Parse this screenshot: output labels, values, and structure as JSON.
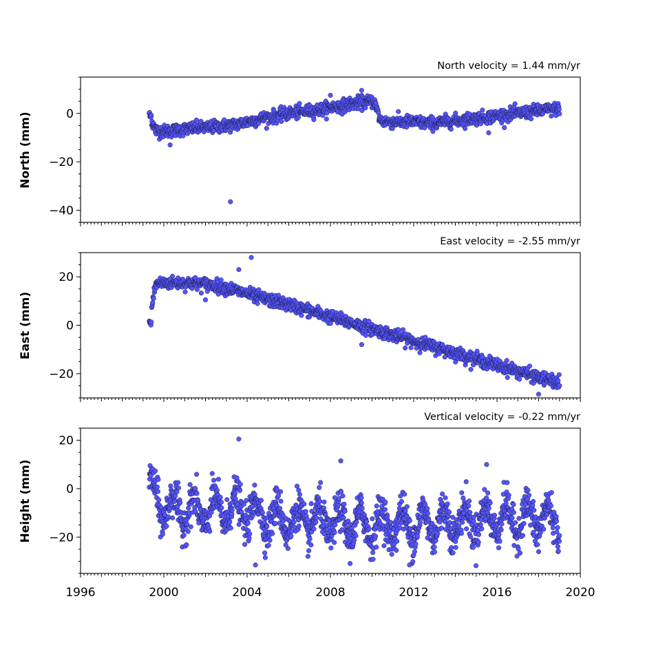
{
  "chart_data": [
    {
      "type": "scatter",
      "title": "North velocity = 1.44 mm/yr",
      "ylabel": "North (mm)",
      "xlim": [
        1996,
        2020
      ],
      "ylim": [
        -45,
        15
      ],
      "yticks": [
        0,
        -20,
        -40
      ],
      "color": "#5555ff",
      "edge_color": "#1a1a3a",
      "series": [
        {
          "segments": [
            {
              "x": [
                1999.3,
                1999.6,
                2000.0,
                2000.5,
                2001.0,
                2001.5,
                2002.0,
                2002.5,
                2003.0,
                2003.5,
                2004.0,
                2004.5,
                2005.0,
                2005.5,
                2006.0,
                2006.5,
                2007.0,
                2007.5,
                2008.0,
                2008.5,
                2009.0,
                2009.5,
                2010.1,
                2010.4,
                2010.8,
                2011.5,
                2012.0,
                2012.5,
                2013.0,
                2013.5,
                2014.0,
                2014.5,
                2015.0,
                2015.5,
                2016.0,
                2016.5,
                2017.0,
                2017.5,
                2018.0,
                2018.5,
                2019.0
              ],
              "y": [
                -1,
                -7,
                -7.5,
                -7,
                -6.5,
                -6,
                -6,
                -5.5,
                -5,
                -4.5,
                -3.5,
                -2.5,
                -1.5,
                -1,
                0,
                0.5,
                1,
                1.5,
                2.5,
                3,
                4,
                4.5,
                5,
                -3,
                -3.5,
                -3.5,
                -3.5,
                -4,
                -4,
                -3.5,
                -3,
                -2.5,
                -2,
                -1.5,
                -1,
                -0.5,
                0,
                0.5,
                1,
                1.5,
                2
              ]
            }
          ],
          "outliers": [
            [
              2003.2,
              -36.5
            ],
            [
              2000.3,
              -13
            ],
            [
              2015.6,
              -8
            ],
            [
              2009.5,
              9.5
            ],
            [
              2008.0,
              7.5
            ]
          ]
        }
      ]
    },
    {
      "type": "scatter",
      "title": "East velocity = -2.55 mm/yr",
      "ylabel": "East (mm)",
      "xlim": [
        1996,
        2020
      ],
      "ylim": [
        -30,
        30
      ],
      "yticks": [
        20,
        0,
        -20
      ],
      "color": "#5555ff",
      "edge_color": "#1a1a3a",
      "series": [
        {
          "segments": [
            {
              "x": [
                1999.3,
                1999.6,
                2000.0,
                2001.0,
                2002.0,
                2003.0,
                2004.0,
                2005.0,
                2006.0,
                2007.0,
                2008.0,
                2009.0,
                2010.0,
                2011.0,
                2012.0,
                2013.0,
                2014.0,
                2015.0,
                2016.0,
                2017.0,
                2018.0,
                2019.0
              ],
              "y": [
                1,
                17,
                17.5,
                17.5,
                17,
                15.5,
                13,
                10.5,
                8.5,
                6,
                3.5,
                1,
                -1.5,
                -4,
                -6.5,
                -9,
                -11.5,
                -14,
                -16.5,
                -19,
                -21.5,
                -24
              ]
            }
          ],
          "outliers": [
            [
              2004.2,
              28
            ],
            [
              2003.6,
              23
            ],
            [
              2018.0,
              -28.5
            ],
            [
              2002.0,
              10.5
            ],
            [
              2004.5,
              9
            ],
            [
              2009.5,
              -8
            ]
          ]
        }
      ]
    },
    {
      "type": "scatter",
      "title": "Vertical velocity = -0.22 mm/yr",
      "ylabel": "Height (mm)",
      "xlabel": "",
      "xlim": [
        1996,
        2020
      ],
      "ylim": [
        -35,
        25
      ],
      "yticks": [
        20,
        0,
        -20
      ],
      "xticks": [
        "1996",
        "2000",
        "2004",
        "2008",
        "2012",
        "2016",
        "2020"
      ],
      "color": "#5555ff",
      "edge_color": "#1a1a3a",
      "series": [
        {
          "segments": [
            {
              "x": [
                1999.3,
                2000.0,
                2001.0,
                2002.0,
                2003.0,
                2004.0,
                2005.0,
                2006.0,
                2007.0,
                2008.0,
                2009.0,
                2010.0,
                2011.0,
                2012.0,
                2013.0,
                2014.0,
                2015.0,
                2016.0,
                2017.0,
                2018.0,
                2019.0
              ],
              "y": [
                0,
                -8,
                -9,
                -10,
                -8,
                -9,
                -12,
                -13,
                -13,
                -14,
                -15,
                -15,
                -15,
                -15,
                -14,
                -14,
                -13,
                -12,
                -13,
                -12,
                -13
              ]
            }
          ],
          "spread": 7,
          "outliers": [
            [
              2003.6,
              20.5
            ],
            [
              2008.5,
              11.5
            ],
            [
              2015.5,
              10
            ],
            [
              2004.4,
              -31.5
            ],
            [
              2011.8,
              -31.5
            ],
            [
              2018.0,
              -26
            ]
          ]
        }
      ]
    }
  ]
}
